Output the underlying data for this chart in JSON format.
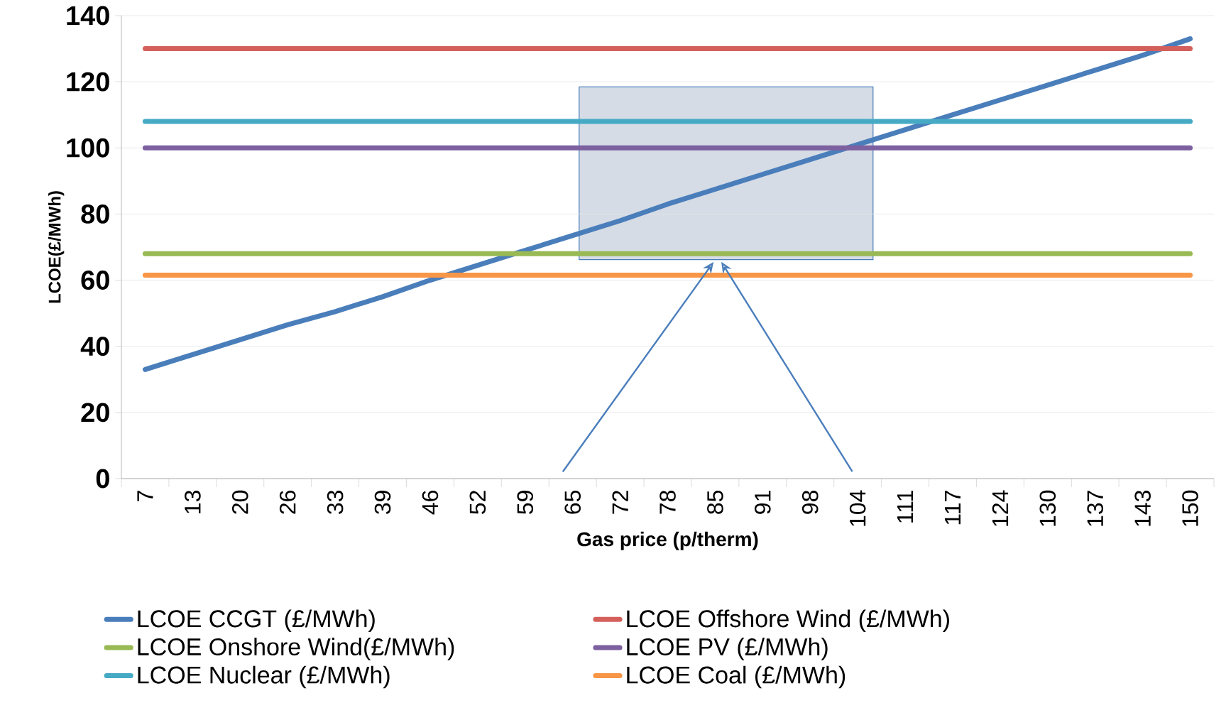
{
  "chart_data": {
    "type": "line",
    "xlabel": "Gas price (p/therm)",
    "ylabel": "LCOE(£/MWh)",
    "categories": [
      "7",
      "13",
      "20",
      "26",
      "33",
      "39",
      "46",
      "52",
      "59",
      "65",
      "72",
      "78",
      "85",
      "91",
      "98",
      "104",
      "111",
      "117",
      "124",
      "130",
      "137",
      "143",
      "150"
    ],
    "series": [
      {
        "name": "LCOE CCGT (£/MWh)",
        "color": "#4a7ebb",
        "values": [
          33,
          37.5,
          42,
          46.5,
          50.5,
          55,
          60,
          64.5,
          69,
          73.5,
          78,
          83,
          87.5,
          92,
          96.5,
          101,
          105.5,
          110,
          114.5,
          119,
          123.5,
          128,
          133
        ]
      },
      {
        "name": "LCOE Offshore Wind (£/MWh)",
        "color": "#d4605c",
        "values": [
          130,
          130,
          130,
          130,
          130,
          130,
          130,
          130,
          130,
          130,
          130,
          130,
          130,
          130,
          130,
          130,
          130,
          130,
          130,
          130,
          130,
          130,
          130
        ]
      },
      {
        "name": "LCOE Onshore Wind(£/MWh)",
        "color": "#98b954",
        "values": [
          68,
          68,
          68,
          68,
          68,
          68,
          68,
          68,
          68,
          68,
          68,
          68,
          68,
          68,
          68,
          68,
          68,
          68,
          68,
          68,
          68,
          68,
          68
        ]
      },
      {
        "name": "LCOE PV (£/MWh)",
        "color": "#7d60a0",
        "values": [
          100,
          100,
          100,
          100,
          100,
          100,
          100,
          100,
          100,
          100,
          100,
          100,
          100,
          100,
          100,
          100,
          100,
          100,
          100,
          100,
          100,
          100,
          100
        ]
      },
      {
        "name": "LCOE Nuclear (£/MWh)",
        "color": "#46aac5",
        "values": [
          108,
          108,
          108,
          108,
          108,
          108,
          108,
          108,
          108,
          108,
          108,
          108,
          108,
          108,
          108,
          108,
          108,
          108,
          108,
          108,
          108,
          108,
          108
        ]
      },
      {
        "name": "LCOE Coal (£/MWh)",
        "color": "#f79646",
        "values": [
          61.5,
          61.5,
          61.5,
          61.5,
          61.5,
          61.5,
          61.5,
          61.5,
          61.5,
          61.5,
          61.5,
          61.5,
          61.5,
          61.5,
          61.5,
          61.5,
          61.5,
          61.5,
          61.5,
          61.5,
          61.5,
          61.5,
          61.5
        ]
      }
    ],
    "ylim": [
      0,
      140
    ],
    "yticks": [
      0,
      20,
      40,
      60,
      80,
      100,
      120,
      140
    ],
    "grid": "y",
    "legend": "bottom",
    "marker": "none",
    "line_style": "solid"
  }
}
